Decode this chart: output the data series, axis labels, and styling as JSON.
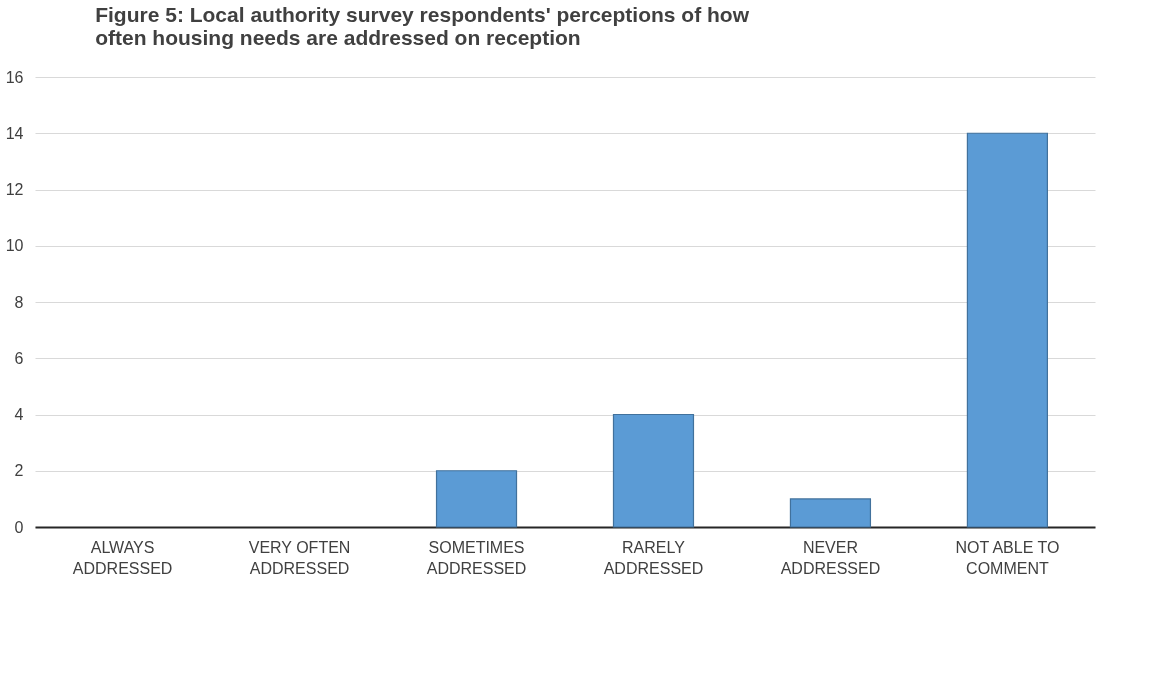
{
  "chart_data": {
    "type": "bar",
    "title": "Figure 5: Local authority survey respondents' perceptions of how\noften housing needs are addressed on reception",
    "categories": [
      "ALWAYS\nADDRESSED",
      "VERY OFTEN\nADDRESSED",
      "SOMETIMES\nADDRESSED",
      "RARELY\nADDRESSED",
      "NEVER\nADDRESSED",
      "NOT ABLE TO\nCOMMENT"
    ],
    "values": [
      0,
      0,
      2,
      4,
      1,
      14
    ],
    "color": "#5b9bd5",
    "ylim": [
      0,
      16
    ],
    "yticks": [
      0,
      2,
      4,
      6,
      8,
      10,
      12,
      14,
      16
    ],
    "grid": "y"
  }
}
